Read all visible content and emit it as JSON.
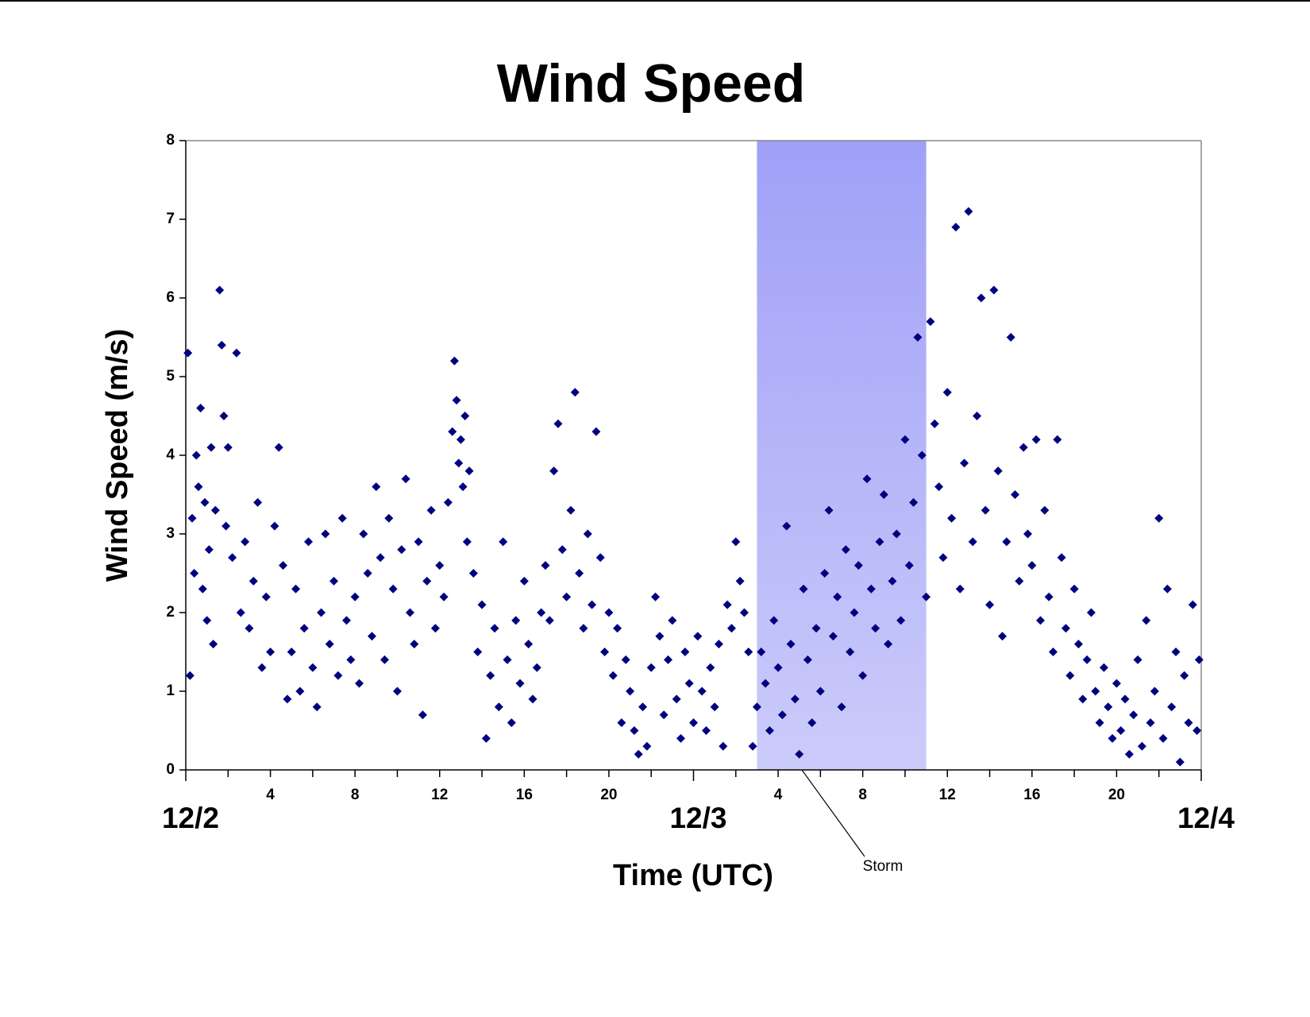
{
  "chart_data": {
    "type": "scatter",
    "title": "Wind Speed",
    "x_label": "Time (UTC)",
    "y_label": "Wind Speed (m/s)",
    "color": "#000080",
    "xlim": [
      0,
      48
    ],
    "ylim": [
      0,
      8
    ],
    "yticks": [
      0,
      1,
      2,
      3,
      4,
      5,
      6,
      7,
      8
    ],
    "xticks": [
      4,
      8,
      12,
      16,
      20,
      {
        "value": 28,
        "label": "4"
      },
      {
        "value": 32,
        "label": "8"
      },
      {
        "value": 36,
        "label": "12"
      },
      {
        "value": 40,
        "label": "16"
      },
      {
        "value": 44,
        "label": "20"
      }
    ],
    "date_ticks": [
      {
        "value": 0,
        "label": "12/2"
      },
      {
        "value": 24,
        "label": "12/3"
      },
      {
        "value": 48,
        "label": "12/4"
      }
    ],
    "minor_xticks": [
      2,
      6,
      10,
      14,
      18,
      22,
      26,
      30,
      34,
      38,
      42,
      46
    ],
    "storm_span": [
      27,
      35
    ],
    "storm_colors": [
      "#a0a0f8",
      "#cbcbfa"
    ],
    "annotation": "Storm",
    "x": [
      0.1,
      0.2,
      0.3,
      0.4,
      0.5,
      0.6,
      0.7,
      0.8,
      0.9,
      1.0,
      1.1,
      1.2,
      1.3,
      1.4,
      1.6,
      1.7,
      1.8,
      1.9,
      2.0,
      2.2,
      2.4,
      2.6,
      2.8,
      3.0,
      3.2,
      3.4,
      3.6,
      3.8,
      4.0,
      4.2,
      4.4,
      4.6,
      4.8,
      5.0,
      5.2,
      5.4,
      5.6,
      5.8,
      6.0,
      6.2,
      6.4,
      6.6,
      6.8,
      7.0,
      7.2,
      7.4,
      7.6,
      7.8,
      8.0,
      8.2,
      8.4,
      8.6,
      8.8,
      9.0,
      9.2,
      9.4,
      9.6,
      9.8,
      10.0,
      10.2,
      10.4,
      10.6,
      10.8,
      11.0,
      11.2,
      11.4,
      11.6,
      11.8,
      12.0,
      12.2,
      12.4,
      12.6,
      12.7,
      12.8,
      12.9,
      13.0,
      13.1,
      13.2,
      13.3,
      13.4,
      13.6,
      13.8,
      14.0,
      14.2,
      14.4,
      14.6,
      14.8,
      15.0,
      15.2,
      15.4,
      15.6,
      15.8,
      16.0,
      16.2,
      16.4,
      16.6,
      16.8,
      17.0,
      17.2,
      17.4,
      17.6,
      17.8,
      18.0,
      18.2,
      18.4,
      18.6,
      18.8,
      19.0,
      19.2,
      19.4,
      19.6,
      19.8,
      20.0,
      20.2,
      20.4,
      20.6,
      20.8,
      21.0,
      21.2,
      21.4,
      21.6,
      21.8,
      22.0,
      22.2,
      22.4,
      22.6,
      22.8,
      23.0,
      23.2,
      23.4,
      23.6,
      23.8,
      24.0,
      24.2,
      24.4,
      24.6,
      24.8,
      25.0,
      25.2,
      25.4,
      25.6,
      25.8,
      26.0,
      26.2,
      26.4,
      26.6,
      26.8,
      27.0,
      27.2,
      27.4,
      27.6,
      27.8,
      28.0,
      28.2,
      28.4,
      28.6,
      28.8,
      29.0,
      29.2,
      29.4,
      29.6,
      29.8,
      30.0,
      30.2,
      30.4,
      30.6,
      30.8,
      31.0,
      31.2,
      31.4,
      31.6,
      31.8,
      32.0,
      32.2,
      32.4,
      32.6,
      32.8,
      33.0,
      33.2,
      33.4,
      33.6,
      33.8,
      34.0,
      34.2,
      34.4,
      34.6,
      34.8,
      35.0,
      35.2,
      35.4,
      35.6,
      35.8,
      36.0,
      36.2,
      36.4,
      36.6,
      36.8,
      37.0,
      37.2,
      37.4,
      37.6,
      37.8,
      38.0,
      38.2,
      38.4,
      38.6,
      38.8,
      39.0,
      39.2,
      39.4,
      39.6,
      39.8,
      40.0,
      40.2,
      40.4,
      40.6,
      40.8,
      41.0,
      41.2,
      41.4,
      41.6,
      41.8,
      42.0,
      42.2,
      42.4,
      42.6,
      42.8,
      43.0,
      43.2,
      43.4,
      43.6,
      43.8,
      44.0,
      44.2,
      44.4,
      44.6,
      44.8,
      45.0,
      45.2,
      45.4,
      45.6,
      45.8,
      46.0,
      46.2,
      46.4,
      46.6,
      46.8,
      47.0,
      47.2,
      47.4,
      47.6,
      47.8,
      47.9
    ],
    "values": [
      5.3,
      1.2,
      3.2,
      2.5,
      4.0,
      3.6,
      4.6,
      2.3,
      3.4,
      1.9,
      2.8,
      4.1,
      1.6,
      3.3,
      6.1,
      5.4,
      4.5,
      3.1,
      4.1,
      2.7,
      5.3,
      2.0,
      2.9,
      1.8,
      2.4,
      3.4,
      1.3,
      2.2,
      1.5,
      3.1,
      4.1,
      2.6,
      0.9,
      1.5,
      2.3,
      1.0,
      1.8,
      2.9,
      1.3,
      0.8,
      2.0,
      3.0,
      1.6,
      2.4,
      1.2,
      3.2,
      1.9,
      1.4,
      2.2,
      1.1,
      3.0,
      2.5,
      1.7,
      3.6,
      2.7,
      1.4,
      3.2,
      2.3,
      1.0,
      2.8,
      3.7,
      2.0,
      1.6,
      2.9,
      0.7,
      2.4,
      3.3,
      1.8,
      2.6,
      2.2,
      3.4,
      4.3,
      5.2,
      4.7,
      3.9,
      4.2,
      3.6,
      4.5,
      2.9,
      3.8,
      2.5,
      1.5,
      2.1,
      0.4,
      1.2,
      1.8,
      0.8,
      2.9,
      1.4,
      0.6,
      1.9,
      1.1,
      2.4,
      1.6,
      0.9,
      1.3,
      2.0,
      2.6,
      1.9,
      3.8,
      4.4,
      2.8,
      2.2,
      3.3,
      4.8,
      2.5,
      1.8,
      3.0,
      2.1,
      4.3,
      2.7,
      1.5,
      2.0,
      1.2,
      1.8,
      0.6,
      1.4,
      1.0,
      0.5,
      0.2,
      0.8,
      0.3,
      1.3,
      2.2,
      1.7,
      0.7,
      1.4,
      1.9,
      0.9,
      0.4,
      1.5,
      1.1,
      0.6,
      1.7,
      1.0,
      0.5,
      1.3,
      0.8,
      1.6,
      0.3,
      2.1,
      1.8,
      2.9,
      2.4,
      2.0,
      1.5,
      0.3,
      0.8,
      1.5,
      1.1,
      0.5,
      1.9,
      1.3,
      0.7,
      3.1,
      1.6,
      0.9,
      0.2,
      2.3,
      1.4,
      0.6,
      1.8,
      1.0,
      2.5,
      3.3,
      1.7,
      2.2,
      0.8,
      2.8,
      1.5,
      2.0,
      2.6,
      1.2,
      3.7,
      2.3,
      1.8,
      2.9,
      3.5,
      1.6,
      2.4,
      3.0,
      1.9,
      4.2,
      2.6,
      3.4,
      5.5,
      4.0,
      2.2,
      5.7,
      4.4,
      3.6,
      2.7,
      4.8,
      3.2,
      6.9,
      2.3,
      3.9,
      7.1,
      2.9,
      4.5,
      6.0,
      3.3,
      2.1,
      6.1,
      3.8,
      1.7,
      2.9,
      5.5,
      3.5,
      2.4,
      4.1,
      3.0,
      2.6,
      4.2,
      1.9,
      3.3,
      2.2,
      1.5,
      4.2,
      2.7,
      1.8,
      1.2,
      2.3,
      1.6,
      0.9,
      1.4,
      2.0,
      1.0,
      0.6,
      1.3,
      0.8,
      0.4,
      1.1,
      0.5,
      0.9,
      0.2,
      0.7,
      1.4,
      0.3,
      1.9,
      0.6,
      1.0,
      3.2,
      0.4,
      2.3,
      0.8,
      1.5,
      0.1,
      1.2,
      0.6,
      2.1,
      0.5,
      1.4
    ]
  }
}
